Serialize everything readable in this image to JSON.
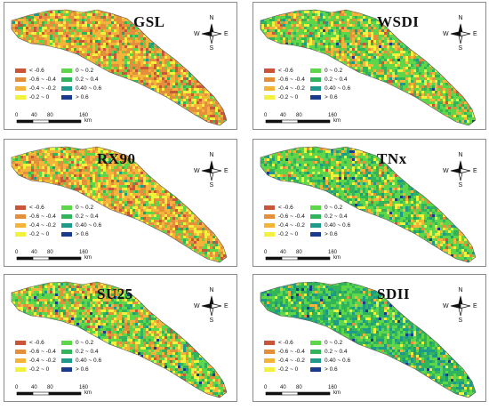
{
  "legend": [
    {
      "label": "< -0.6",
      "color": "#c9563a"
    },
    {
      "label": "-0.6 ~ -0.4",
      "color": "#e48f3c"
    },
    {
      "label": "-0.4 ~ -0.2",
      "color": "#f4b43a"
    },
    {
      "label": "-0.2 ~ 0",
      "color": "#f2f23c"
    },
    {
      "label": "0 ~ 0.2",
      "color": "#5ed64a"
    },
    {
      "label": "0.2 ~ 0.4",
      "color": "#32b45a"
    },
    {
      "label": "0.40 ~ 0.6",
      "color": "#1d9a8c"
    },
    {
      "label": "> 0.6",
      "color": "#1b3a8c"
    }
  ],
  "scale": {
    "ticks": [
      "0",
      "40",
      "80",
      "160"
    ],
    "unit": "km"
  },
  "compass": {
    "n": "N",
    "s": "S",
    "e": "E",
    "w": "W"
  },
  "panels": [
    {
      "title": "GSL",
      "mix": [
        0.1,
        0.3,
        0.28,
        0.14,
        0.12,
        0.05,
        0.01,
        0.0
      ]
    },
    {
      "title": "WSDI",
      "mix": [
        0.02,
        0.1,
        0.16,
        0.14,
        0.38,
        0.16,
        0.03,
        0.01
      ]
    },
    {
      "title": "RX90",
      "mix": [
        0.06,
        0.28,
        0.28,
        0.16,
        0.16,
        0.05,
        0.01,
        0.0
      ]
    },
    {
      "title": "TNx",
      "mix": [
        0.01,
        0.05,
        0.1,
        0.12,
        0.4,
        0.24,
        0.07,
        0.01
      ]
    },
    {
      "title": "SU25",
      "mix": [
        0.03,
        0.12,
        0.16,
        0.18,
        0.36,
        0.12,
        0.02,
        0.01
      ]
    },
    {
      "title": "SDII",
      "mix": [
        0.0,
        0.02,
        0.04,
        0.06,
        0.3,
        0.36,
        0.2,
        0.02
      ]
    }
  ]
}
